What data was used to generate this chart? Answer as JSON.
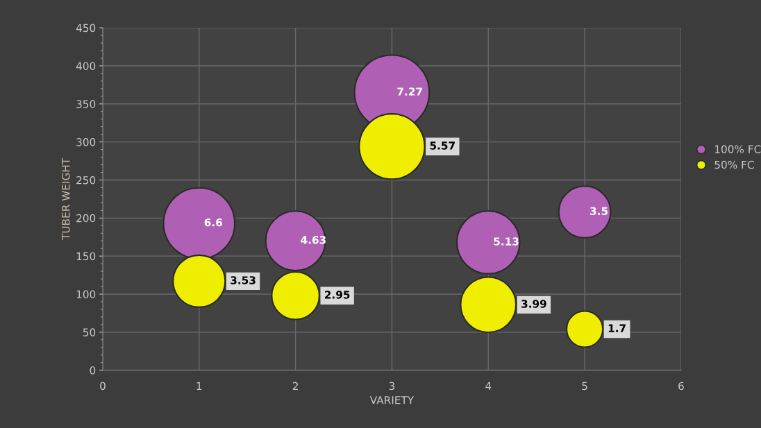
{
  "chart_data": {
    "type": "bubble",
    "xlabel": "VARIETY",
    "ylabel": "TUBER WEIGHT",
    "xlim": [
      0,
      6
    ],
    "xticks": [
      0,
      1,
      2,
      3,
      4,
      5,
      6
    ],
    "ylim": [
      0,
      450
    ],
    "yticks": [
      0,
      50,
      100,
      150,
      200,
      250,
      300,
      350,
      400,
      450
    ],
    "grid": true,
    "legend": "right",
    "series": [
      {
        "name": "100% FC",
        "color": "#b060b4",
        "x": [
          1,
          2,
          3,
          4,
          5
        ],
        "values": [
          193,
          170,
          365,
          168,
          208
        ],
        "sizes": [
          6.6,
          4.63,
          7.27,
          5.13,
          3.5
        ],
        "value_labels": [
          "6.6",
          "4.63",
          "7.27",
          "5.13",
          "3.5"
        ]
      },
      {
        "name": "50% FC",
        "color": "#f0ee00",
        "x": [
          1,
          2,
          3,
          4,
          5
        ],
        "values": [
          117,
          98,
          294,
          86,
          54
        ],
        "sizes": [
          3.53,
          2.95,
          5.57,
          3.99,
          1.7
        ],
        "value_labels": [
          "3.53",
          "2.95",
          "5.57",
          "3.99",
          "1.7"
        ]
      }
    ]
  }
}
